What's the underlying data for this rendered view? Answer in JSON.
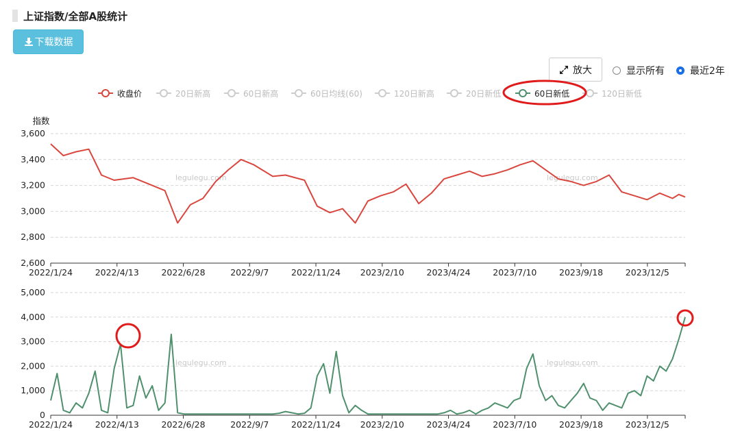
{
  "page": {
    "title": "上证指数/全部A股统计",
    "download_label": "下载数据",
    "zoom_label": "放大",
    "radio_all": "显示所有",
    "radio_recent": "最近2年",
    "selected_radio": "最近2年",
    "watermark": "legulegu.com"
  },
  "legend": [
    {
      "label": "收盘价",
      "color": "#d9463d",
      "active": true
    },
    {
      "label": "20日新高",
      "color": "#cccccc",
      "active": false
    },
    {
      "label": "60日新高",
      "color": "#cccccc",
      "active": false
    },
    {
      "label": "60日均线(60)",
      "color": "#cccccc",
      "active": false
    },
    {
      "label": "120日新高",
      "color": "#cccccc",
      "active": false
    },
    {
      "label": "20日新低",
      "color": "#cccccc",
      "active": false
    },
    {
      "label": "60日新低",
      "color": "#4e8f6c",
      "active": true
    },
    {
      "label": "120日新低",
      "color": "#cccccc",
      "active": false
    }
  ],
  "colors": {
    "close": "#d9463d",
    "newlow60": "#4e8f6c",
    "highlight": "#e01b1b"
  },
  "chart_data": [
    {
      "type": "line",
      "ylabel": "指数",
      "ylim": [
        2600,
        3600
      ],
      "yticks": [
        "2,600",
        "2,800",
        "3,000",
        "3,200",
        "3,400",
        "3,600"
      ],
      "xticks": [
        "2022/1/24",
        "2022/4/13",
        "2022/6/28",
        "2022/9/7",
        "2022/11/24",
        "2023/2/10",
        "2023/4/24",
        "2023/7/10",
        "2023/9/18",
        "2023/12/5"
      ],
      "grid": true,
      "series": [
        {
          "name": "收盘价",
          "x": [
            0,
            0.02,
            0.04,
            0.06,
            0.08,
            0.1,
            0.13,
            0.15,
            0.18,
            0.2,
            0.22,
            0.24,
            0.26,
            0.28,
            0.3,
            0.32,
            0.35,
            0.37,
            0.4,
            0.42,
            0.44,
            0.46,
            0.48,
            0.5,
            0.52,
            0.54,
            0.56,
            0.58,
            0.6,
            0.62,
            0.64,
            0.66,
            0.68,
            0.7,
            0.72,
            0.74,
            0.76,
            0.78,
            0.8,
            0.82,
            0.84,
            0.86,
            0.88,
            0.9,
            0.92,
            0.94,
            0.96,
            0.98,
            0.99,
            1.0
          ],
          "values": [
            3520,
            3430,
            3460,
            3480,
            3280,
            3240,
            3260,
            3220,
            3160,
            2910,
            3050,
            3100,
            3230,
            3320,
            3400,
            3360,
            3270,
            3280,
            3240,
            3040,
            2990,
            3020,
            2910,
            3080,
            3120,
            3150,
            3210,
            3060,
            3140,
            3250,
            3280,
            3310,
            3270,
            3290,
            3320,
            3360,
            3390,
            3320,
            3250,
            3230,
            3200,
            3230,
            3280,
            3150,
            3120,
            3090,
            3140,
            3100,
            3130,
            3110
          ]
        }
      ]
    },
    {
      "type": "line",
      "ylim": [
        0,
        5000
      ],
      "yticks": [
        "0",
        "1,000",
        "2,000",
        "3,000",
        "4,000",
        "5,000"
      ],
      "xticks": [
        "2022/1/24",
        "2022/4/13",
        "2022/6/28",
        "2022/9/7",
        "2022/11/24",
        "2023/2/10",
        "2023/4/24",
        "2023/7/10",
        "2023/9/18",
        "2023/12/5"
      ],
      "grid": true,
      "series": [
        {
          "name": "60日新低",
          "x": [
            0,
            0.01,
            0.02,
            0.03,
            0.04,
            0.05,
            0.06,
            0.07,
            0.08,
            0.09,
            0.1,
            0.11,
            0.12,
            0.13,
            0.14,
            0.15,
            0.16,
            0.17,
            0.18,
            0.19,
            0.2,
            0.21,
            0.22,
            0.23,
            0.24,
            0.25,
            0.26,
            0.27,
            0.28,
            0.29,
            0.3,
            0.31,
            0.32,
            0.33,
            0.34,
            0.35,
            0.36,
            0.37,
            0.38,
            0.39,
            0.4,
            0.41,
            0.42,
            0.43,
            0.44,
            0.45,
            0.46,
            0.47,
            0.48,
            0.49,
            0.5,
            0.51,
            0.52,
            0.53,
            0.54,
            0.55,
            0.56,
            0.57,
            0.58,
            0.59,
            0.6,
            0.61,
            0.62,
            0.63,
            0.64,
            0.65,
            0.66,
            0.67,
            0.68,
            0.69,
            0.7,
            0.71,
            0.72,
            0.73,
            0.74,
            0.75,
            0.76,
            0.77,
            0.78,
            0.79,
            0.8,
            0.81,
            0.82,
            0.83,
            0.84,
            0.85,
            0.86,
            0.87,
            0.88,
            0.89,
            0.9,
            0.91,
            0.92,
            0.93,
            0.94,
            0.95,
            0.96,
            0.97,
            0.98,
            0.99,
            1.0
          ],
          "values": [
            600,
            1700,
            200,
            100,
            500,
            300,
            900,
            1800,
            200,
            100,
            1900,
            2900,
            300,
            400,
            1600,
            700,
            1200,
            200,
            500,
            3300,
            100,
            50,
            50,
            50,
            50,
            50,
            50,
            50,
            50,
            50,
            50,
            50,
            50,
            50,
            50,
            50,
            80,
            150,
            100,
            50,
            80,
            300,
            1600,
            2100,
            900,
            2600,
            800,
            100,
            400,
            200,
            50,
            50,
            50,
            50,
            50,
            50,
            50,
            50,
            50,
            50,
            50,
            50,
            100,
            200,
            50,
            100,
            200,
            50,
            200,
            300,
            500,
            400,
            300,
            600,
            700,
            1900,
            2500,
            1200,
            600,
            800,
            400,
            300,
            600,
            900,
            1300,
            700,
            600,
            200,
            500,
            400,
            300,
            900,
            1000,
            800,
            1600,
            1400,
            2000,
            1800,
            2300,
            3100,
            4000
          ]
        }
      ]
    }
  ]
}
